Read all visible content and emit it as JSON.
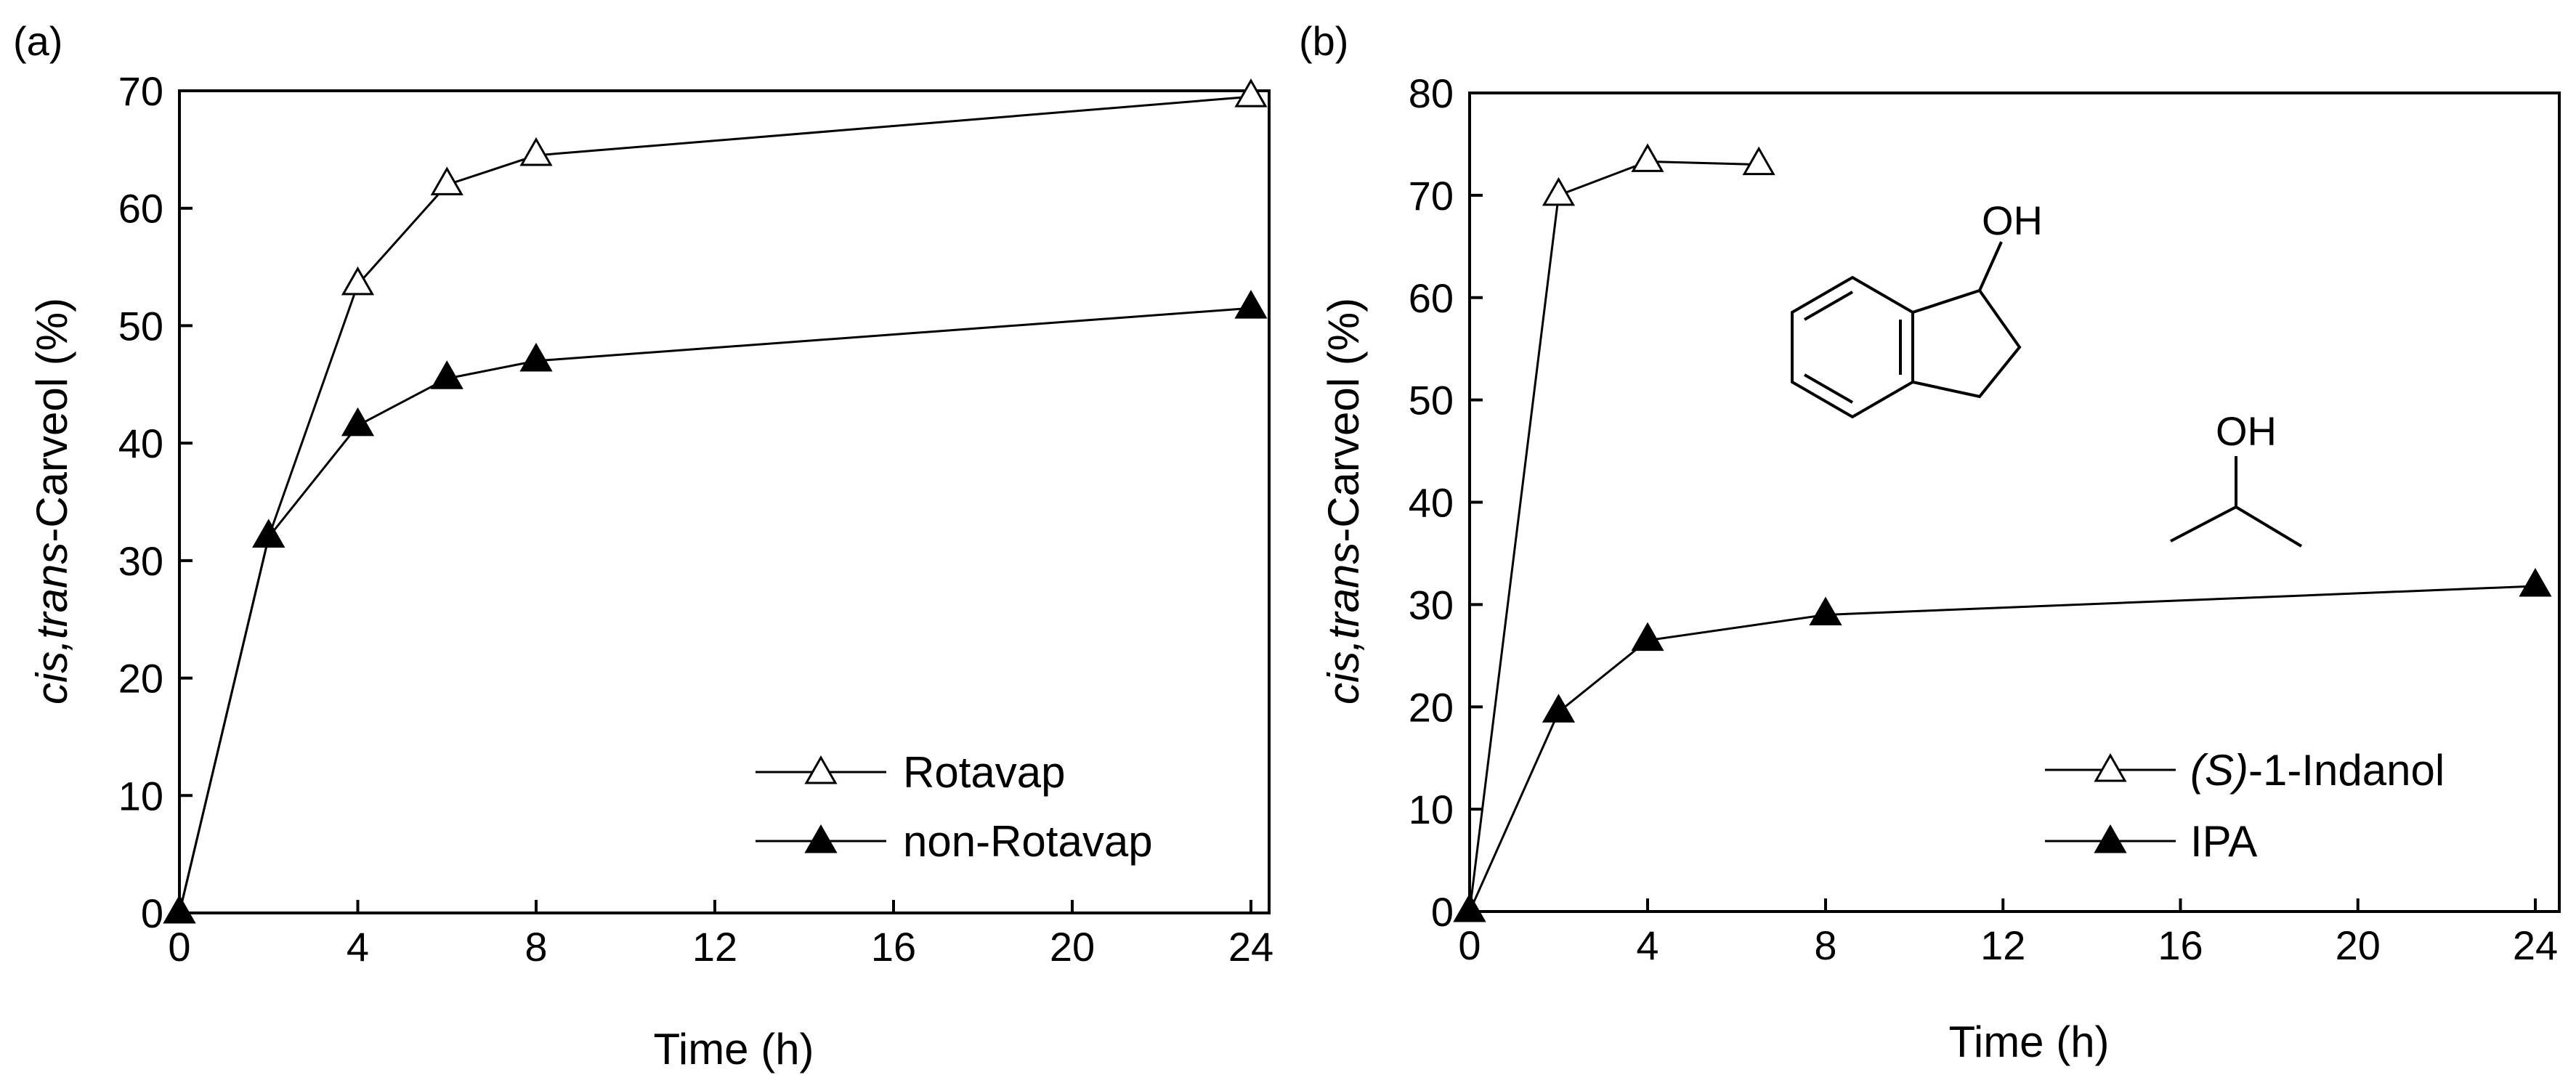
{
  "chart_data": [
    {
      "panel_label": "(a)",
      "type": "line",
      "xlabel": "Time (h)",
      "ylabel_italic": "cis,trans",
      "ylabel_rest": "-Carveol (%)",
      "xlim": [
        0,
        24
      ],
      "ylim": [
        0,
        70
      ],
      "xticks": [
        0,
        4,
        8,
        12,
        16,
        20,
        24
      ],
      "yticks": [
        0,
        10,
        20,
        30,
        40,
        50,
        60,
        70
      ],
      "x_breakpoint": 8,
      "series": [
        {
          "name": "Rotavap",
          "marker": "open-triangle",
          "x": [
            0,
            2,
            4,
            6,
            8,
            24
          ],
          "values": [
            0,
            32,
            53.5,
            62,
            64.5,
            69.5
          ]
        },
        {
          "name": "non-Rotavap",
          "marker": "filled-triangle",
          "x": [
            0,
            2,
            4,
            6,
            8,
            24
          ],
          "values": [
            0,
            32,
            41.5,
            45.5,
            47,
            51.5
          ]
        }
      ],
      "legend": {
        "placement": "bottom-right",
        "labels": [
          "Rotavap",
          "non-Rotavap"
        ]
      }
    },
    {
      "panel_label": "(b)",
      "type": "line",
      "xlabel": "Time (h)",
      "ylabel_italic": "cis,trans",
      "ylabel_rest": "-Carveol (%)",
      "xlim": [
        0,
        24
      ],
      "ylim": [
        0,
        80
      ],
      "xticks": [
        0,
        4,
        8,
        12,
        16,
        20,
        24
      ],
      "yticks": [
        0,
        10,
        20,
        30,
        40,
        50,
        60,
        70,
        80
      ],
      "x_breakpoint": 8,
      "series": [
        {
          "name": "(S)-1-Indanol",
          "marker": "open-triangle",
          "x": [
            0,
            2,
            4,
            6.5
          ],
          "values": [
            0,
            70,
            73.3,
            73
          ]
        },
        {
          "name": "IPA",
          "marker": "filled-triangle",
          "x": [
            0,
            2,
            4,
            8,
            24
          ],
          "values": [
            0,
            19.5,
            26.5,
            29,
            31.8
          ]
        }
      ],
      "legend": {
        "placement": "bottom-right",
        "label_1_italic": "(S)",
        "label_1_rest": "-1-Indanol",
        "label_2": "IPA"
      },
      "annotations": {
        "indanol_oh": "OH",
        "ipa_oh": "OH"
      }
    }
  ]
}
